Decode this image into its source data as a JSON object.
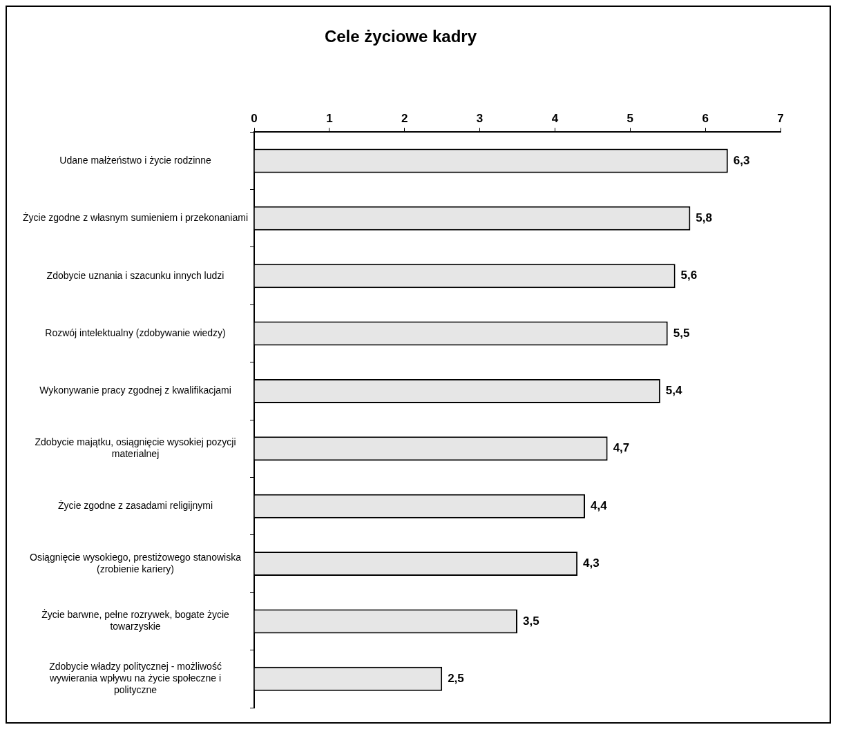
{
  "chart_data": {
    "type": "bar",
    "orientation": "horizontal",
    "title": "Cele życiowe kadry",
    "categories": [
      "Udane małżeństwo i życie rodzinne",
      "Życie zgodne z własnym sumieniem i przekonaniami",
      "Zdobycie uznania i szacunku innych ludzi",
      "Rozwój intelektualny (zdobywanie wiedzy)",
      "Wykonywanie pracy zgodnej z kwalifikacjami",
      "Zdobycie majątku, osiągnięcie wysokiej pozycji materialnej",
      "Życie zgodne z zasadami religijnymi",
      "Osiągnięcie wysokiego, prestiżowego stanowiska (zrobienie kariery)",
      "Życie barwne, pełne rozrywek, bogate życie towarzyskie",
      "Zdobycie władzy politycznej - możliwość wywierania wpływu na życie społeczne i polityczne"
    ],
    "values": [
      6.3,
      5.8,
      5.6,
      5.5,
      5.4,
      4.7,
      4.4,
      4.3,
      3.5,
      2.5
    ],
    "value_labels": [
      "6,3",
      "5,8",
      "5,6",
      "5,5",
      "5,4",
      "4,7",
      "4,4",
      "4,3",
      "3,5",
      "2,5"
    ],
    "color": "#e6e6e6",
    "xlim": [
      0,
      7
    ],
    "xticks": [
      0,
      1,
      2,
      3,
      4,
      5,
      6,
      7
    ],
    "grid": false,
    "legend": false
  }
}
